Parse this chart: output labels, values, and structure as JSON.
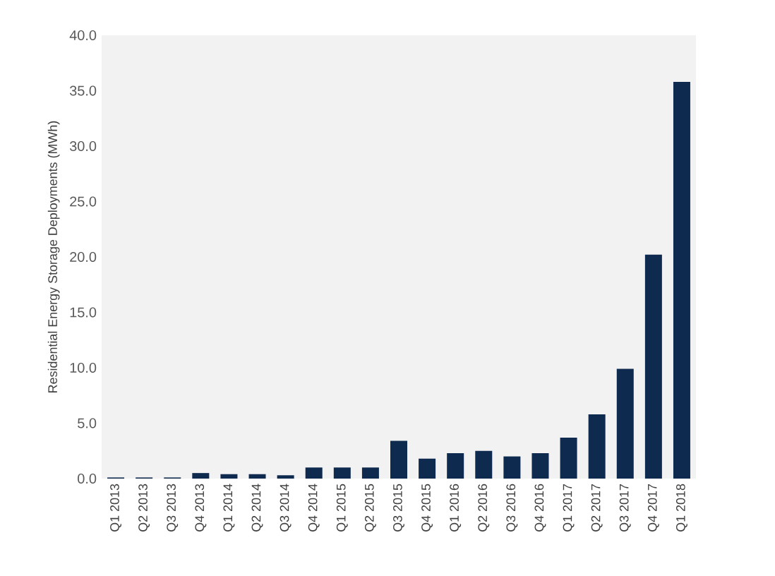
{
  "chart_data": {
    "type": "bar",
    "ylabel": "Residential Energy Storage Deployments (MWh)",
    "categories": [
      "Q1 2013",
      "Q2 2013",
      "Q3 2013",
      "Q4 2013",
      "Q1 2014",
      "Q2 2014",
      "Q3 2014",
      "Q4 2014",
      "Q1 2015",
      "Q2 2015",
      "Q3 2015",
      "Q4 2015",
      "Q1 2016",
      "Q2 2016",
      "Q3 2016",
      "Q4 2016",
      "Q1 2017",
      "Q2 2017",
      "Q3 2017",
      "Q4 2017",
      "Q1 2018"
    ],
    "values": [
      0.1,
      0.1,
      0.1,
      0.5,
      0.4,
      0.4,
      0.3,
      1.0,
      1.0,
      1.0,
      3.4,
      1.8,
      2.3,
      2.5,
      2.0,
      2.3,
      3.7,
      5.8,
      9.9,
      20.2,
      35.8
    ],
    "color": "#0f2a4f",
    "ylim": [
      0,
      40
    ],
    "yticks": [
      {
        "value": 0,
        "label": "0.0"
      },
      {
        "value": 5,
        "label": "5.0"
      },
      {
        "value": 10,
        "label": "10.0"
      },
      {
        "value": 15,
        "label": "15.0"
      },
      {
        "value": 20,
        "label": "20.0"
      },
      {
        "value": 25,
        "label": "25.0"
      },
      {
        "value": 30,
        "label": "30.0"
      },
      {
        "value": 35,
        "label": "35.0"
      },
      {
        "value": 40,
        "label": "40.0"
      }
    ],
    "grid": false
  }
}
